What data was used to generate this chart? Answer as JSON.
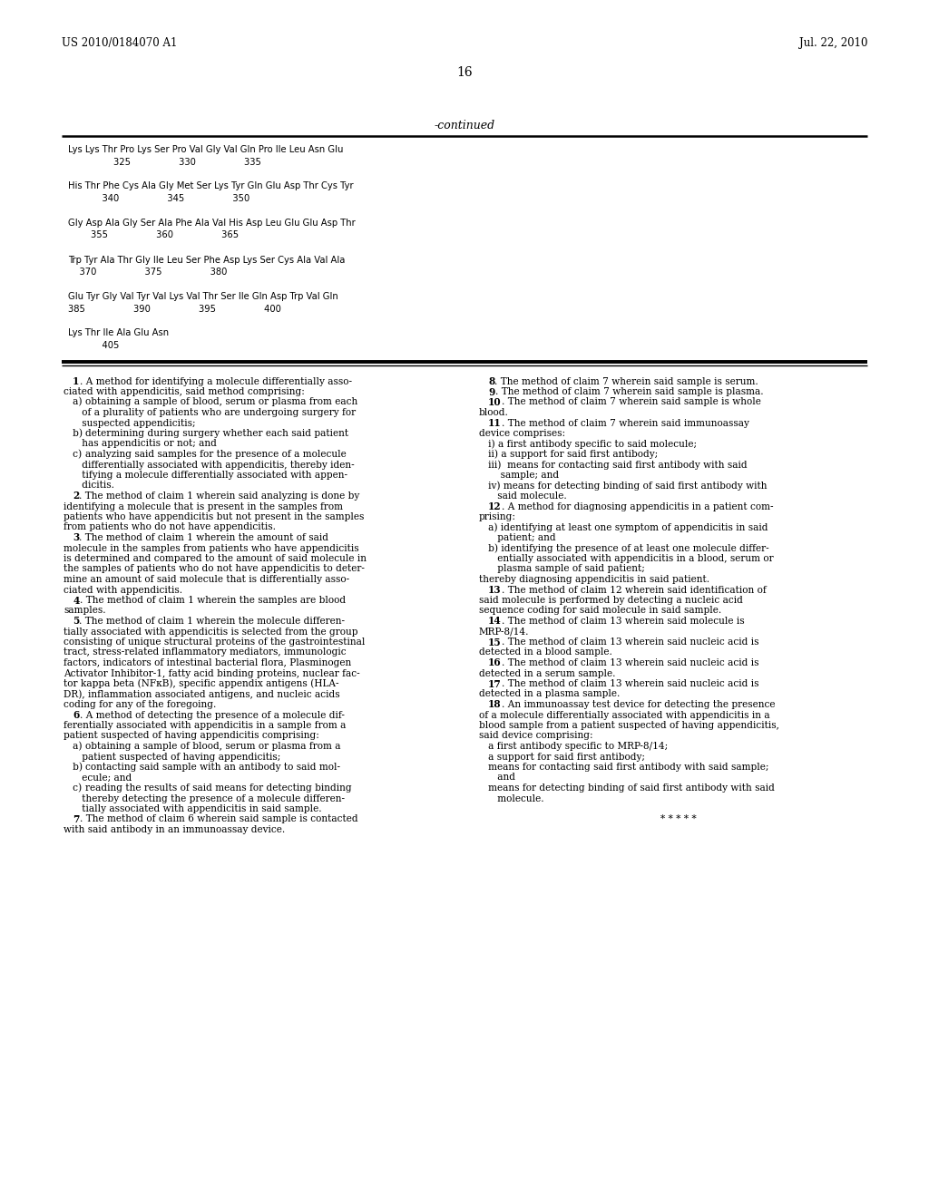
{
  "bg_color": "#ffffff",
  "header_left": "US 2010/0184070 A1",
  "header_right": "Jul. 22, 2010",
  "page_number": "16",
  "continued_label": "-continued",
  "sequence_lines": [
    "Lys Lys Thr Pro Lys Ser Pro Val Gly Val Gln Pro Ile Leu Asn Glu",
    "                325                 330                 335",
    "",
    "His Thr Phe Cys Ala Gly Met Ser Lys Tyr Gln Glu Asp Thr Cys Tyr",
    "            340                 345                 350",
    "",
    "Gly Asp Ala Gly Ser Ala Phe Ala Val His Asp Leu Glu Glu Asp Thr",
    "        355                 360                 365",
    "",
    "Trp Tyr Ala Thr Gly Ile Leu Ser Phe Asp Lys Ser Cys Ala Val Ala",
    "    370                 375                 380",
    "",
    "Glu Tyr Gly Val Tyr Val Lys Val Thr Ser Ile Gln Asp Trp Val Gln",
    "385                 390                 395                 400",
    "",
    "Lys Thr Ile Ala Glu Asn",
    "            405"
  ],
  "left_col_lines": [
    [
      {
        "t": "   ",
        "b": false
      },
      {
        "t": "1",
        "b": true
      },
      {
        "t": ". A method for identifying a molecule differentially asso-",
        "b": false
      }
    ],
    [
      {
        "t": "ciated with appendicitis, said method comprising:",
        "b": false
      }
    ],
    [
      {
        "t": "   a) ",
        "b": false
      },
      {
        "t": "obtaining a sample of blood, serum or plasma from each",
        "b": false
      }
    ],
    [
      {
        "t": "      of a plurality of patients who are undergoing surgery for",
        "b": false
      }
    ],
    [
      {
        "t": "      suspected appendicitis;",
        "b": false
      }
    ],
    [
      {
        "t": "   b) ",
        "b": false
      },
      {
        "t": "determining during surgery whether each said patient",
        "b": false
      }
    ],
    [
      {
        "t": "      has appendicitis or not; and",
        "b": false
      }
    ],
    [
      {
        "t": "   c) ",
        "b": false
      },
      {
        "t": "analyzing said samples for the presence of a molecule",
        "b": false
      }
    ],
    [
      {
        "t": "      differentially associated with appendicitis, thereby iden-",
        "b": false
      }
    ],
    [
      {
        "t": "      tifying a molecule differentially associated with appen-",
        "b": false
      }
    ],
    [
      {
        "t": "      dicitis.",
        "b": false
      }
    ],
    [
      {
        "t": "   ",
        "b": false
      },
      {
        "t": "2",
        "b": true
      },
      {
        "t": ". The method of claim 1 wherein said analyzing is done by",
        "b": false
      }
    ],
    [
      {
        "t": "identifying a molecule that is present in the samples from",
        "b": false
      }
    ],
    [
      {
        "t": "patients who have appendicitis but not present in the samples",
        "b": false
      }
    ],
    [
      {
        "t": "from patients who do not have appendicitis.",
        "b": false
      }
    ],
    [
      {
        "t": "   ",
        "b": false
      },
      {
        "t": "3",
        "b": true
      },
      {
        "t": ". The method of claim 1 wherein the amount of said",
        "b": false
      }
    ],
    [
      {
        "t": "molecule in the samples from patients who have appendicitis",
        "b": false
      }
    ],
    [
      {
        "t": "is determined and compared to the amount of said molecule in",
        "b": false
      }
    ],
    [
      {
        "t": "the samples of patients who do not have appendicitis to deter-",
        "b": false
      }
    ],
    [
      {
        "t": "mine an amount of said molecule that is differentially asso-",
        "b": false
      }
    ],
    [
      {
        "t": "ciated with appendicitis.",
        "b": false
      }
    ],
    [
      {
        "t": "   ",
        "b": false
      },
      {
        "t": "4",
        "b": true
      },
      {
        "t": ". The method of claim 1 wherein the samples are blood",
        "b": false
      }
    ],
    [
      {
        "t": "samples.",
        "b": false
      }
    ],
    [
      {
        "t": "   ",
        "b": false
      },
      {
        "t": "5",
        "b": true
      },
      {
        "t": ". The method of claim 1 wherein the molecule differen-",
        "b": false
      }
    ],
    [
      {
        "t": "tially associated with appendicitis is selected from the group",
        "b": false
      }
    ],
    [
      {
        "t": "consisting of unique structural proteins of the gastrointestinal",
        "b": false
      }
    ],
    [
      {
        "t": "tract, stress-related inflammatory mediators, immunologic",
        "b": false
      }
    ],
    [
      {
        "t": "factors, indicators of intestinal bacterial flora, Plasminogen",
        "b": false
      }
    ],
    [
      {
        "t": "Activator Inhibitor-1, fatty acid binding proteins, nuclear fac-",
        "b": false
      }
    ],
    [
      {
        "t": "tor kappa beta (NFκB), specific appendix antigens (HLA-",
        "b": false
      }
    ],
    [
      {
        "t": "DR), inflammation associated antigens, and nucleic acids",
        "b": false
      }
    ],
    [
      {
        "t": "coding for any of the foregoing.",
        "b": false
      }
    ],
    [
      {
        "t": "   ",
        "b": false
      },
      {
        "t": "6",
        "b": true
      },
      {
        "t": ". A method of detecting the presence of a molecule dif-",
        "b": false
      }
    ],
    [
      {
        "t": "ferentially associated with appendicitis in a sample from a",
        "b": false
      }
    ],
    [
      {
        "t": "patient suspected of having appendicitis comprising:",
        "b": false
      }
    ],
    [
      {
        "t": "   a) ",
        "b": false
      },
      {
        "t": "obtaining a sample of blood, serum or plasma from a",
        "b": false
      }
    ],
    [
      {
        "t": "      patient suspected of having appendicitis;",
        "b": false
      }
    ],
    [
      {
        "t": "   b) ",
        "b": false
      },
      {
        "t": "contacting said sample with an antibody to said mol-",
        "b": false
      }
    ],
    [
      {
        "t": "      ecule; and",
        "b": false
      }
    ],
    [
      {
        "t": "   c) ",
        "b": false
      },
      {
        "t": "reading the results of said means for detecting binding",
        "b": false
      }
    ],
    [
      {
        "t": "      thereby detecting the presence of a molecule differen-",
        "b": false
      }
    ],
    [
      {
        "t": "      tially associated with appendicitis in said sample.",
        "b": false
      }
    ],
    [
      {
        "t": "   ",
        "b": false
      },
      {
        "t": "7",
        "b": true
      },
      {
        "t": ". The method of claim 6 wherein said sample is contacted",
        "b": false
      }
    ],
    [
      {
        "t": "with said antibody in an immunoassay device.",
        "b": false
      }
    ]
  ],
  "right_col_lines": [
    [
      {
        "t": "   ",
        "b": false
      },
      {
        "t": "8",
        "b": true
      },
      {
        "t": ". The method of claim 7 wherein said sample is serum.",
        "b": false
      }
    ],
    [
      {
        "t": "   ",
        "b": false
      },
      {
        "t": "9",
        "b": true
      },
      {
        "t": ". The method of claim 7 wherein said sample is plasma.",
        "b": false
      }
    ],
    [
      {
        "t": "   ",
        "b": false
      },
      {
        "t": "10",
        "b": true
      },
      {
        "t": ". The method of claim 7 wherein said sample is whole",
        "b": false
      }
    ],
    [
      {
        "t": "blood.",
        "b": false
      }
    ],
    [
      {
        "t": "   ",
        "b": false
      },
      {
        "t": "11",
        "b": true
      },
      {
        "t": ". The method of claim 7 wherein said immunoassay",
        "b": false
      }
    ],
    [
      {
        "t": "device comprises:",
        "b": false
      }
    ],
    [
      {
        "t": "   i) a first antibody specific to said molecule;",
        "b": false
      }
    ],
    [
      {
        "t": "   ii) a support for said first antibody;",
        "b": false
      }
    ],
    [
      {
        "t": "   iii)  means for contacting said first antibody with said",
        "b": false
      }
    ],
    [
      {
        "t": "       sample; and",
        "b": false
      }
    ],
    [
      {
        "t": "   iv) means for detecting binding of said first antibody with",
        "b": false
      }
    ],
    [
      {
        "t": "      said molecule.",
        "b": false
      }
    ],
    [
      {
        "t": "   ",
        "b": false
      },
      {
        "t": "12",
        "b": true
      },
      {
        "t": ". A method for diagnosing appendicitis in a patient com-",
        "b": false
      }
    ],
    [
      {
        "t": "prising:",
        "b": false
      }
    ],
    [
      {
        "t": "   a) identifying at least one symptom of appendicitis in said",
        "b": false
      }
    ],
    [
      {
        "t": "      patient; and",
        "b": false
      }
    ],
    [
      {
        "t": "   b) identifying the presence of at least one molecule differ-",
        "b": false
      }
    ],
    [
      {
        "t": "      entially associated with appendicitis in a blood, serum or",
        "b": false
      }
    ],
    [
      {
        "t": "      plasma sample of said patient;",
        "b": false
      }
    ],
    [
      {
        "t": "thereby diagnosing appendicitis in said patient.",
        "b": false
      }
    ],
    [
      {
        "t": "   ",
        "b": false
      },
      {
        "t": "13",
        "b": true
      },
      {
        "t": ". The method of claim 12 wherein said identification of",
        "b": false
      }
    ],
    [
      {
        "t": "said molecule is performed by detecting a nucleic acid",
        "b": false
      }
    ],
    [
      {
        "t": "sequence coding for said molecule in said sample.",
        "b": false
      }
    ],
    [
      {
        "t": "   ",
        "b": false
      },
      {
        "t": "14",
        "b": true
      },
      {
        "t": ". The method of claim 13 wherein said molecule is",
        "b": false
      }
    ],
    [
      {
        "t": "MRP-8/14.",
        "b": false
      }
    ],
    [
      {
        "t": "   ",
        "b": false
      },
      {
        "t": "15",
        "b": true
      },
      {
        "t": ". The method of claim 13 wherein said nucleic acid is",
        "b": false
      }
    ],
    [
      {
        "t": "detected in a blood sample.",
        "b": false
      }
    ],
    [
      {
        "t": "   ",
        "b": false
      },
      {
        "t": "16",
        "b": true
      },
      {
        "t": ". The method of claim 13 wherein said nucleic acid is",
        "b": false
      }
    ],
    [
      {
        "t": "detected in a serum sample.",
        "b": false
      }
    ],
    [
      {
        "t": "   ",
        "b": false
      },
      {
        "t": "17",
        "b": true
      },
      {
        "t": ". The method of claim 13 wherein said nucleic acid is",
        "b": false
      }
    ],
    [
      {
        "t": "detected in a plasma sample.",
        "b": false
      }
    ],
    [
      {
        "t": "   ",
        "b": false
      },
      {
        "t": "18",
        "b": true
      },
      {
        "t": ". An immunoassay test device for detecting the presence",
        "b": false
      }
    ],
    [
      {
        "t": "of a molecule differentially associated with appendicitis in a",
        "b": false
      }
    ],
    [
      {
        "t": "blood sample from a patient suspected of having appendicitis,",
        "b": false
      }
    ],
    [
      {
        "t": "said device comprising:",
        "b": false
      }
    ],
    [
      {
        "t": "   a first antibody specific to MRP-8/14;",
        "b": false
      }
    ],
    [
      {
        "t": "   a support for said first antibody;",
        "b": false
      }
    ],
    [
      {
        "t": "   means for contacting said first antibody with said sample;",
        "b": false
      }
    ],
    [
      {
        "t": "      and",
        "b": false
      }
    ],
    [
      {
        "t": "   means for detecting binding of said first antibody with said",
        "b": false
      }
    ],
    [
      {
        "t": "      molecule.",
        "b": false
      }
    ],
    [
      {
        "t": "",
        "b": false
      }
    ],
    [
      {
        "t": "* * * * *",
        "b": false,
        "center": true
      }
    ]
  ]
}
